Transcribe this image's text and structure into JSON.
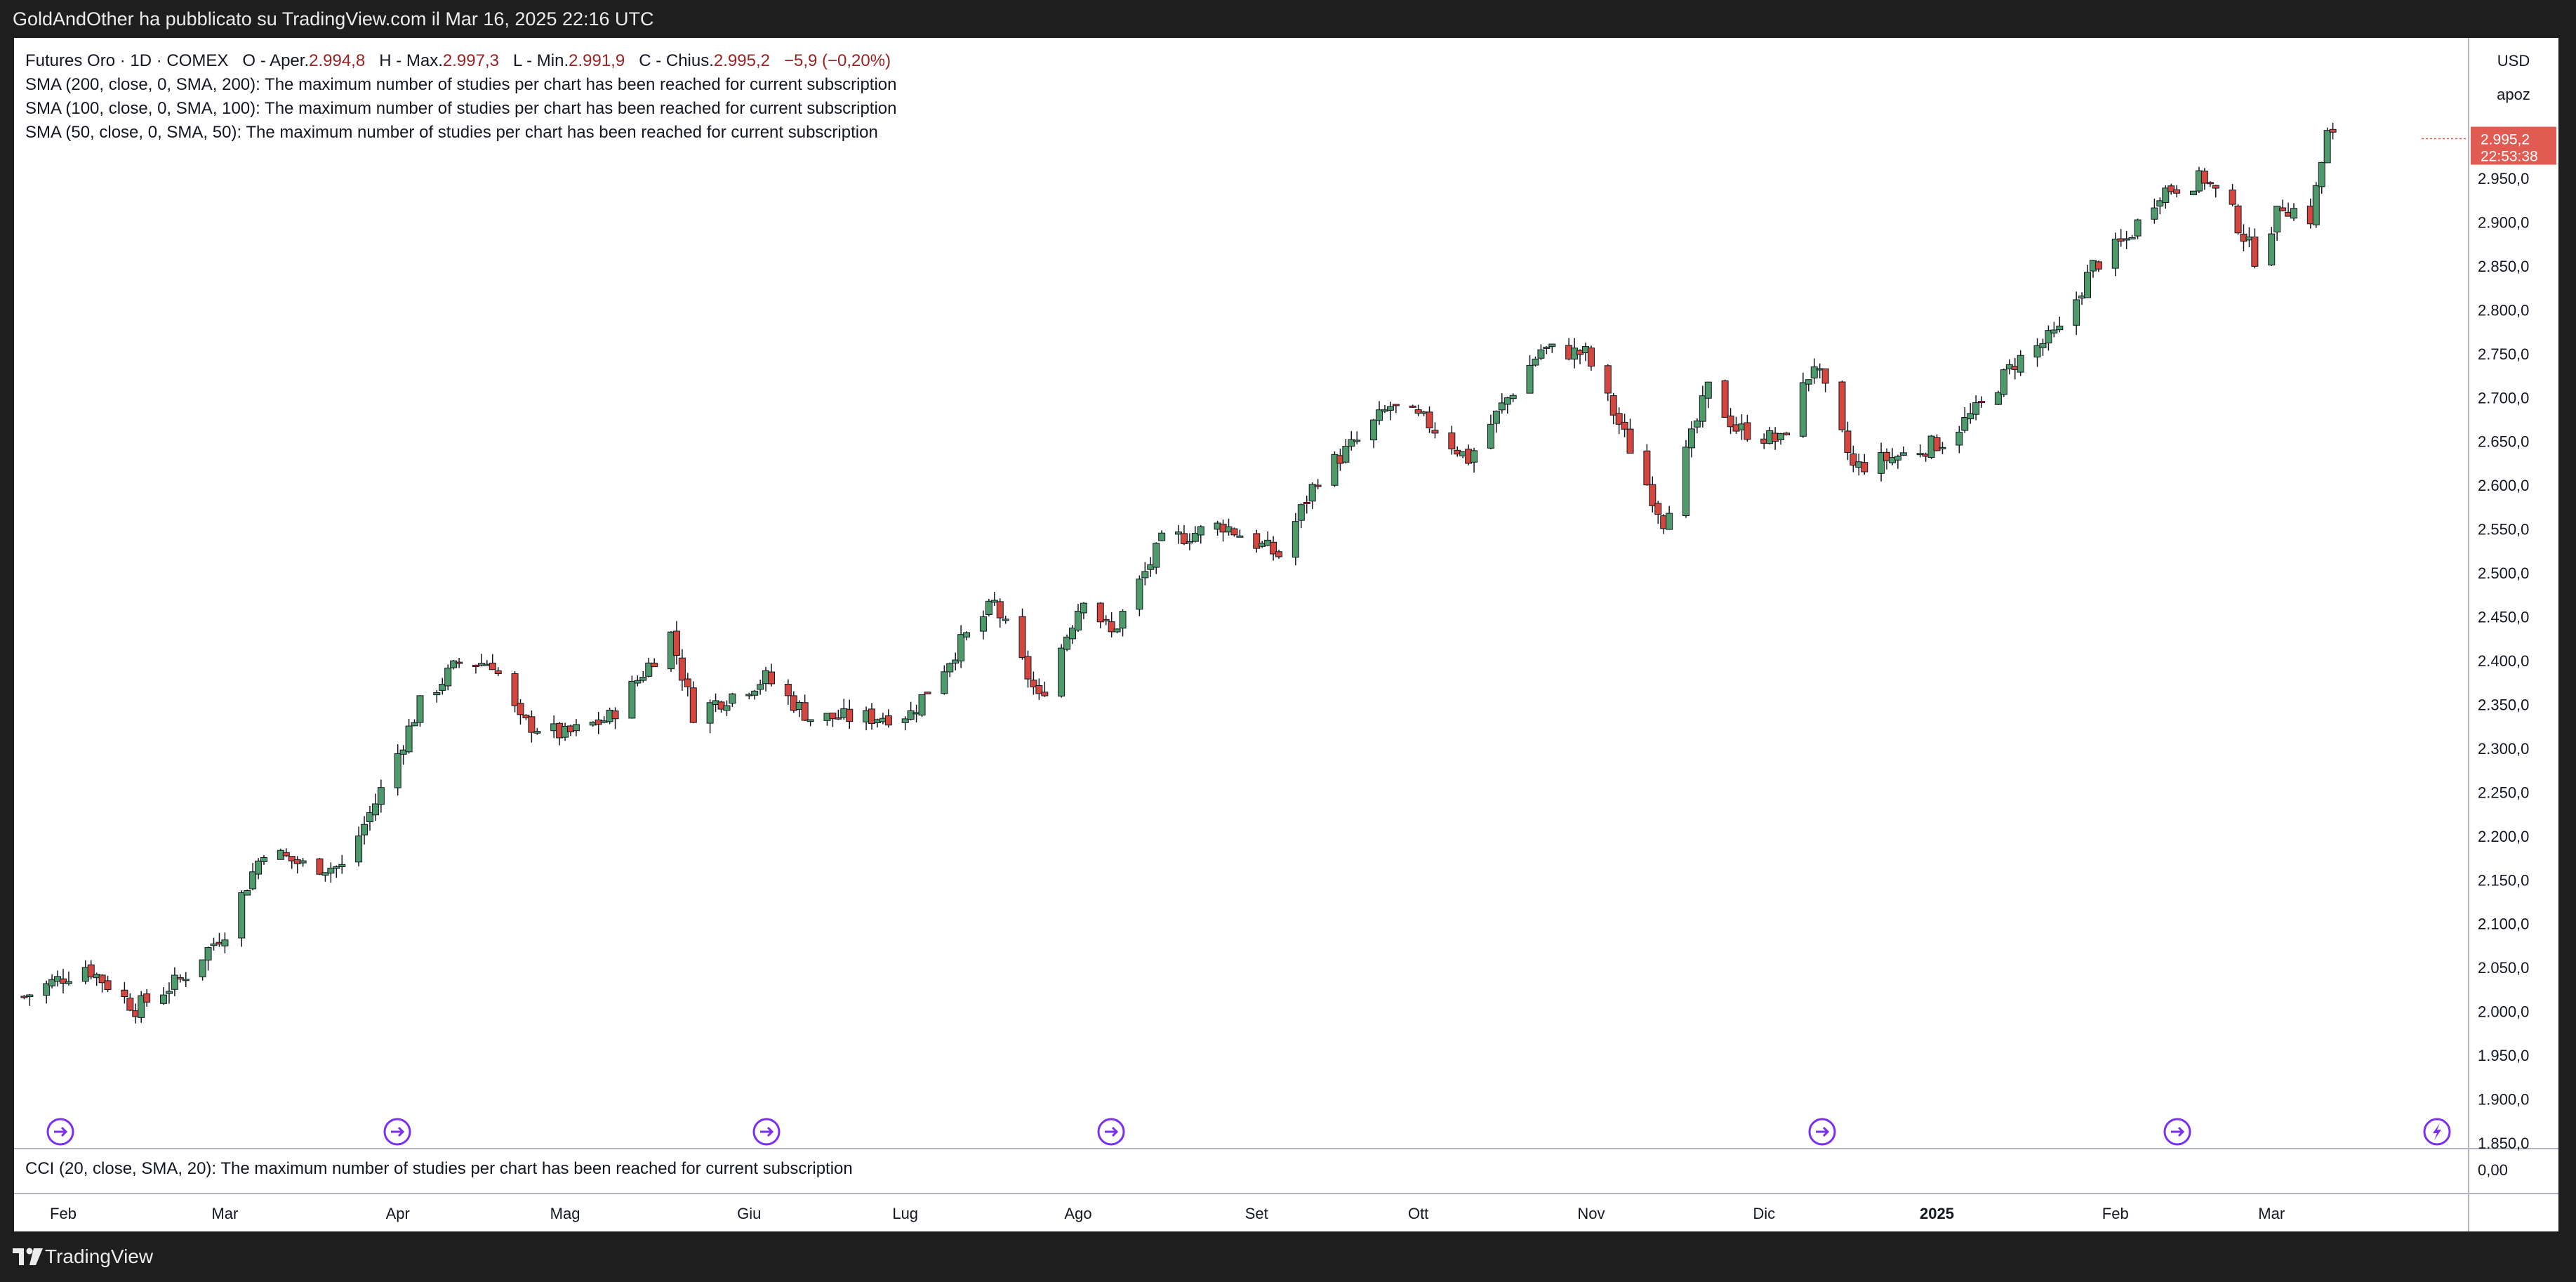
{
  "header": {
    "publish_line": "GoldAndOther ha pubblicato su TradingView.com il Mar 16, 2025 22:16 UTC"
  },
  "legend": {
    "symbol": "Futures Oro · 1D · COMEX",
    "o_label": "O - Aper.",
    "o_value": "2.994,8",
    "h_label": "H - Max.",
    "h_value": "2.997,3",
    "l_label": "L - Min.",
    "l_value": "2.991,9",
    "c_label": "C - Chius.",
    "c_value": "2.995,2",
    "change": "−5,9 (−0,20%)",
    "study_lines": [
      "SMA (200, close, 0, SMA, 200): The maximum number of studies per chart has been reached for current subscription",
      "SMA (100, close, 0, SMA, 100): The maximum number of studies per chart has been reached for current subscription",
      "SMA (50, close, 0, SMA, 50): The maximum number of studies per chart has been reached for current subscription"
    ]
  },
  "price_scale": {
    "currency": "USD",
    "mode": "apoz",
    "last_price": "2.995,2",
    "countdown": "22:53:38",
    "tick_labels": [
      "2.950,0",
      "2.900,0",
      "2.850,0",
      "2.800,0",
      "2.750,0",
      "2.700,0",
      "2.650,0",
      "2.600,0",
      "2.550,0",
      "2.500,0",
      "2.450,0",
      "2.400,0",
      "2.350,0",
      "2.300,0",
      "2.250,0",
      "2.200,0",
      "2.150,0",
      "2.100,0",
      "2.050,0",
      "2.000,0",
      "1.950,0",
      "1.900,0",
      "1.850,0"
    ]
  },
  "indicator_pane": {
    "label": "CCI (20, close, SMA, 20): The maximum number of studies per chart has been reached for current subscription",
    "scale_label": "0,00"
  },
  "time_axis": {
    "labels": [
      "Feb",
      "Mar",
      "Apr",
      "Mag",
      "Giu",
      "Lug",
      "Ago",
      "Set",
      "Ott",
      "Nov",
      "Dic",
      "2025",
      "Feb",
      "Mar"
    ],
    "bold_label": "2025"
  },
  "footer": {
    "brand": "TradingView"
  },
  "colors": {
    "up": "#4e9a6b",
    "down": "#d4473f",
    "marker": "#7b2ff2",
    "price_tag": "#e05b52"
  },
  "event_markers": [
    {
      "icon": "dividend-arrow-icon"
    },
    {
      "icon": "dividend-arrow-icon"
    },
    {
      "icon": "dividend-arrow-icon"
    },
    {
      "icon": "dividend-arrow-icon"
    },
    {
      "icon": "dividend-arrow-icon"
    },
    {
      "icon": "dividend-arrow-icon"
    },
    {
      "icon": "lightning-icon"
    }
  ],
  "chart_data": {
    "type": "candlestick",
    "period": "1D",
    "ylim": [
      1850,
      3000
    ],
    "close_points": [
      {
        "x": "2024-01-25",
        "y": 2017
      },
      {
        "x": "2024-02-05",
        "y": 2052
      },
      {
        "x": "2024-02-14",
        "y": 2004
      },
      {
        "x": "2024-02-22",
        "y": 2036
      },
      {
        "x": "2024-03-01",
        "y": 2092
      },
      {
        "x": "2024-03-08",
        "y": 2185
      },
      {
        "x": "2024-03-15",
        "y": 2167
      },
      {
        "x": "2024-03-22",
        "y": 2164
      },
      {
        "x": "2024-03-28",
        "y": 2238
      },
      {
        "x": "2024-04-05",
        "y": 2350
      },
      {
        "x": "2024-04-12",
        "y": 2398
      },
      {
        "x": "2024-04-18",
        "y": 2398
      },
      {
        "x": "2024-04-23",
        "y": 2330
      },
      {
        "x": "2024-05-01",
        "y": 2315
      },
      {
        "x": "2024-05-09",
        "y": 2335
      },
      {
        "x": "2024-05-20",
        "y": 2430
      },
      {
        "x": "2024-05-24",
        "y": 2340
      },
      {
        "x": "2024-06-06",
        "y": 2380
      },
      {
        "x": "2024-06-14",
        "y": 2335
      },
      {
        "x": "2024-06-24",
        "y": 2335
      },
      {
        "x": "2024-07-02",
        "y": 2340
      },
      {
        "x": "2024-07-11",
        "y": 2420
      },
      {
        "x": "2024-07-17",
        "y": 2465
      },
      {
        "x": "2024-07-25",
        "y": 2355
      },
      {
        "x": "2024-08-02",
        "y": 2475
      },
      {
        "x": "2024-08-07",
        "y": 2430
      },
      {
        "x": "2024-08-16",
        "y": 2535
      },
      {
        "x": "2024-08-27",
        "y": 2555
      },
      {
        "x": "2024-09-06",
        "y": 2520
      },
      {
        "x": "2024-09-13",
        "y": 2610
      },
      {
        "x": "2024-09-20",
        "y": 2650
      },
      {
        "x": "2024-09-26",
        "y": 2690
      },
      {
        "x": "2024-10-03",
        "y": 2670
      },
      {
        "x": "2024-10-10",
        "y": 2630
      },
      {
        "x": "2024-10-16",
        "y": 2690
      },
      {
        "x": "2024-10-23",
        "y": 2755
      },
      {
        "x": "2024-10-31",
        "y": 2750
      },
      {
        "x": "2024-11-06",
        "y": 2670
      },
      {
        "x": "2024-11-14",
        "y": 2560
      },
      {
        "x": "2024-11-22",
        "y": 2710
      },
      {
        "x": "2024-11-27",
        "y": 2665
      },
      {
        "x": "2024-12-05",
        "y": 2650
      },
      {
        "x": "2024-12-11",
        "y": 2740
      },
      {
        "x": "2024-12-18",
        "y": 2620
      },
      {
        "x": "2024-12-27",
        "y": 2635
      },
      {
        "x": "2025-01-03",
        "y": 2650
      },
      {
        "x": "2025-01-10",
        "y": 2690
      },
      {
        "x": "2025-01-16",
        "y": 2740
      },
      {
        "x": "2025-01-24",
        "y": 2775
      },
      {
        "x": "2025-01-30",
        "y": 2850
      },
      {
        "x": "2025-02-05",
        "y": 2880
      },
      {
        "x": "2025-02-11",
        "y": 2935
      },
      {
        "x": "2025-02-19",
        "y": 2950
      },
      {
        "x": "2025-02-24",
        "y": 2910
      },
      {
        "x": "2025-02-28",
        "y": 2860
      },
      {
        "x": "2025-03-05",
        "y": 2920
      },
      {
        "x": "2025-03-10",
        "y": 2905
      },
      {
        "x": "2025-03-13",
        "y": 3000
      },
      {
        "x": "2025-03-14",
        "y": 2995.2
      }
    ]
  }
}
